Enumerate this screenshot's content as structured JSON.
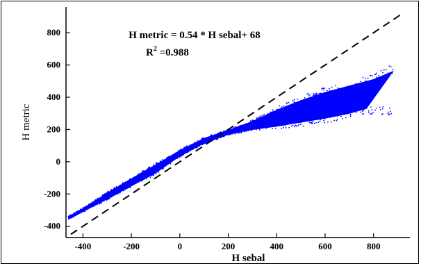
{
  "chart_data": {
    "type": "scatter",
    "xlabel": "H sebal",
    "ylabel": "H metric",
    "xlim": [
      -470,
      950
    ],
    "ylim": [
      -470,
      960
    ],
    "xticks": [
      -400,
      -200,
      0,
      200,
      400,
      600,
      800
    ],
    "yticks": [
      -400,
      -200,
      0,
      200,
      400,
      600,
      800
    ],
    "x_tick_labels": [
      "-400",
      "-200",
      "0",
      "200",
      "400",
      "600",
      "800"
    ],
    "y_tick_labels": [
      "-400",
      "-200",
      "0",
      "200",
      "400",
      "600",
      "800"
    ],
    "annotations": {
      "equation": "H metric = 0.54 * H sebal+ 68",
      "r2_prefix": "R",
      "r2_sup": "2",
      "r2_value": " =0.988"
    },
    "series": [
      {
        "marker_color": "#0000ff",
        "points_lower": [
          [
            -460,
            -355
          ],
          [
            -400,
            -310
          ],
          [
            -300,
            -230
          ],
          [
            -200,
            -150
          ],
          [
            -100,
            -70
          ],
          [
            0,
            35
          ],
          [
            100,
            115
          ],
          [
            200,
            170
          ],
          [
            300,
            200
          ],
          [
            400,
            220
          ],
          [
            500,
            245
          ],
          [
            600,
            270
          ],
          [
            700,
            300
          ],
          [
            770,
            330
          ]
        ],
        "points_upper": [
          [
            -460,
            -340
          ],
          [
            -400,
            -290
          ],
          [
            -300,
            -195
          ],
          [
            -200,
            -105
          ],
          [
            -100,
            -20
          ],
          [
            0,
            70
          ],
          [
            100,
            145
          ],
          [
            200,
            195
          ],
          [
            300,
            250
          ],
          [
            400,
            320
          ],
          [
            500,
            380
          ],
          [
            600,
            430
          ],
          [
            700,
            470
          ],
          [
            800,
            510
          ],
          [
            880,
            560
          ]
        ]
      },
      {
        "style": "dashed",
        "line_color": "#000000",
        "x": [
          -450,
          920
        ],
        "y": [
          -450,
          920
        ]
      }
    ]
  }
}
